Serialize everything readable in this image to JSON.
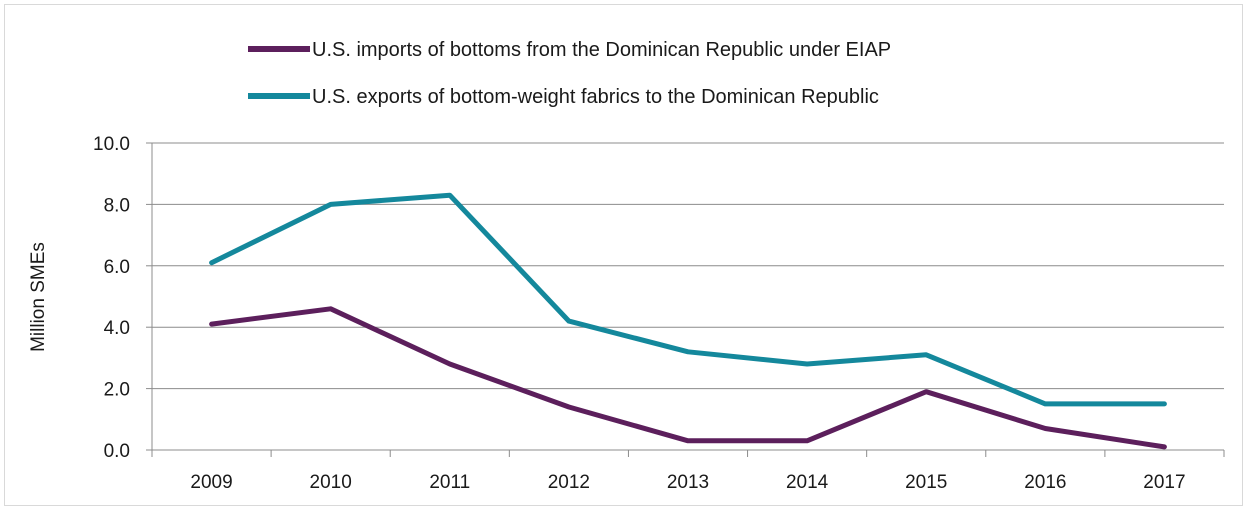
{
  "chart_data": {
    "type": "line",
    "categories": [
      "2009",
      "2010",
      "2011",
      "2012",
      "2013",
      "2014",
      "2015",
      "2016",
      "2017"
    ],
    "series": [
      {
        "name": "U.S. imports of bottoms from the Dominican Republic under EIAP",
        "color": "#5c1f5c",
        "values": [
          4.1,
          4.6,
          2.8,
          1.4,
          0.3,
          0.3,
          1.9,
          0.7,
          0.1
        ]
      },
      {
        "name": "U.S. exports of bottom-weight fabrics to the Dominican Republic",
        "color": "#14889c",
        "values": [
          6.1,
          8.0,
          8.3,
          4.2,
          3.2,
          2.8,
          3.1,
          1.5,
          1.5
        ]
      }
    ],
    "ylabel": "Million SMEs",
    "ylim": [
      0,
      10
    ],
    "yticks": [
      "0.0",
      "2.0",
      "4.0",
      "6.0",
      "8.0",
      "10.0"
    ],
    "grid": true,
    "legend_position": "top"
  }
}
